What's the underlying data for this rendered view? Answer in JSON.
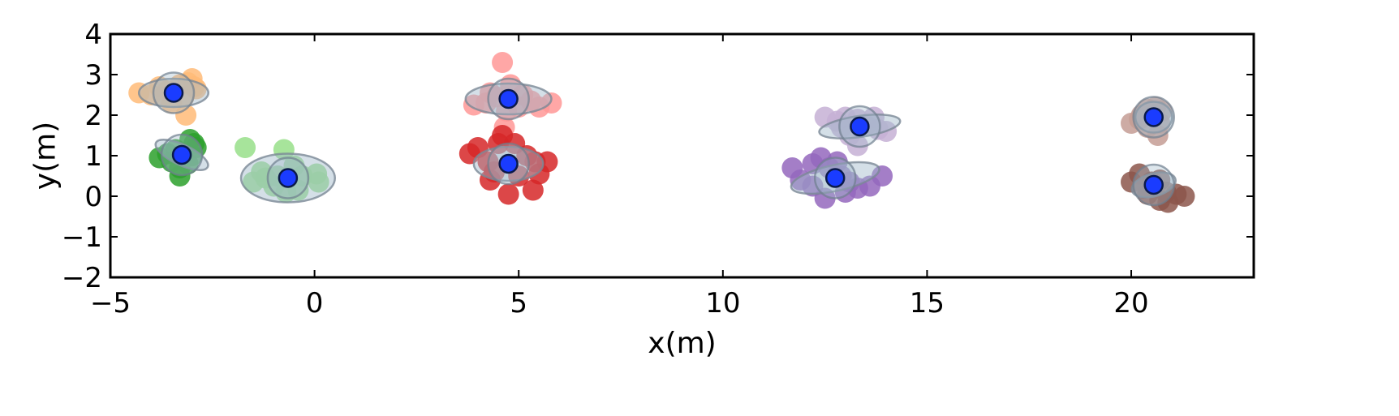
{
  "chart_data": {
    "type": "scatter",
    "title": "",
    "xlabel": "x(m)",
    "ylabel": "y(m)",
    "xlim": [
      -5,
      23
    ],
    "ylim": [
      -2,
      4
    ],
    "xticks": [
      -5,
      0,
      5,
      10,
      15,
      20
    ],
    "yticks": [
      -2,
      -1,
      0,
      1,
      2,
      3,
      4
    ],
    "xtick_labels": [
      "−5",
      "0",
      "5",
      "10",
      "15",
      "20"
    ],
    "ytick_labels": [
      "−2",
      "−1",
      "0",
      "1",
      "2",
      "3",
      "4"
    ],
    "grid": false,
    "center_color": "#1a3cff",
    "ellipse_color": "#9fb7c9",
    "clusters": [
      {
        "color": "#ffbb78",
        "center": [
          -3.45,
          2.55
        ],
        "ellipse": {
          "rx": 0.85,
          "ry": 0.35,
          "angle": 0
        },
        "points": [
          [
            -4.3,
            2.55
          ],
          [
            -4.0,
            2.5
          ],
          [
            -3.8,
            2.7
          ],
          [
            -3.6,
            2.6
          ],
          [
            -3.3,
            2.75
          ],
          [
            -3.1,
            2.8
          ],
          [
            -3.0,
            2.9
          ],
          [
            -2.9,
            2.65
          ],
          [
            -3.2,
            2.45
          ],
          [
            -3.5,
            2.3
          ],
          [
            -3.15,
            2.0
          ],
          [
            -3.7,
            2.45
          ],
          [
            -2.95,
            2.7
          ]
        ]
      },
      {
        "color": "#2ca02c",
        "center": [
          -3.25,
          1.02
        ],
        "ellipse": {
          "rx": 0.7,
          "ry": 0.25,
          "angle": 25
        },
        "points": [
          [
            -3.8,
            0.95
          ],
          [
            -3.5,
            0.85
          ],
          [
            -3.3,
            0.7
          ],
          [
            -3.3,
            0.5
          ],
          [
            -3.0,
            1.0
          ],
          [
            -2.9,
            1.2
          ],
          [
            -2.95,
            1.3
          ],
          [
            -3.4,
            1.15
          ],
          [
            -3.1,
            0.8
          ],
          [
            -3.6,
            1.05
          ],
          [
            -3.05,
            1.4
          ]
        ]
      },
      {
        "color": "#98df8a",
        "center": [
          -0.65,
          0.45
        ],
        "ellipse": {
          "rx": 1.15,
          "ry": 0.6,
          "angle": 0
        },
        "points": [
          [
            -1.7,
            1.2
          ],
          [
            -0.75,
            1.15
          ],
          [
            -1.5,
            0.35
          ],
          [
            -1.2,
            0.45
          ],
          [
            -0.9,
            0.5
          ],
          [
            -0.3,
            0.5
          ],
          [
            0.05,
            0.55
          ],
          [
            0.1,
            0.35
          ],
          [
            -0.4,
            0.15
          ],
          [
            -0.7,
            0.1
          ],
          [
            -1.0,
            0.25
          ],
          [
            -0.5,
            0.75
          ],
          [
            -1.3,
            0.6
          ]
        ]
      },
      {
        "color": "#ff9896",
        "center": [
          4.75,
          2.4
        ],
        "ellipse": {
          "rx": 1.05,
          "ry": 0.38,
          "angle": 0
        },
        "points": [
          [
            4.6,
            3.3
          ],
          [
            3.9,
            2.25
          ],
          [
            4.2,
            2.3
          ],
          [
            4.45,
            2.45
          ],
          [
            4.8,
            2.75
          ],
          [
            5.1,
            2.5
          ],
          [
            5.3,
            2.35
          ],
          [
            5.5,
            2.2
          ],
          [
            5.8,
            2.3
          ],
          [
            4.7,
            2.1
          ],
          [
            4.65,
            1.7
          ],
          [
            5.0,
            2.2
          ],
          [
            4.3,
            2.55
          ]
        ]
      },
      {
        "color": "#d62728",
        "center": [
          4.75,
          0.8
        ],
        "ellipse": {
          "rx": 0.85,
          "ry": 0.42,
          "angle": 0
        },
        "points": [
          [
            3.8,
            1.05
          ],
          [
            4.0,
            1.2
          ],
          [
            4.25,
            0.85
          ],
          [
            4.5,
            1.3
          ],
          [
            4.6,
            1.5
          ],
          [
            4.9,
            1.3
          ],
          [
            5.2,
            1.0
          ],
          [
            5.4,
            0.85
          ],
          [
            5.7,
            0.85
          ],
          [
            5.35,
            0.15
          ],
          [
            4.75,
            0.05
          ],
          [
            4.4,
            0.6
          ],
          [
            5.0,
            0.5
          ],
          [
            4.3,
            0.4
          ],
          [
            5.5,
            0.55
          ]
        ]
      },
      {
        "color": "#c5b0d5",
        "center": [
          13.35,
          1.72
        ],
        "ellipse": {
          "rx": 1.0,
          "ry": 0.26,
          "angle": -8
        },
        "points": [
          [
            12.5,
            1.95
          ],
          [
            12.8,
            1.85
          ],
          [
            13.0,
            1.95
          ],
          [
            13.3,
            1.9
          ],
          [
            13.5,
            1.75
          ],
          [
            13.8,
            1.65
          ],
          [
            14.0,
            1.6
          ],
          [
            13.3,
            1.25
          ],
          [
            13.1,
            1.5
          ],
          [
            13.7,
            1.95
          ],
          [
            12.9,
            1.7
          ]
        ]
      },
      {
        "color": "#9467bd",
        "center": [
          12.75,
          0.45
        ],
        "ellipse": {
          "rx": 1.1,
          "ry": 0.32,
          "angle": -12
        },
        "points": [
          [
            11.7,
            0.7
          ],
          [
            11.9,
            0.4
          ],
          [
            12.2,
            0.8
          ],
          [
            12.4,
            0.95
          ],
          [
            12.6,
            0.7
          ],
          [
            12.9,
            0.5
          ],
          [
            13.1,
            0.35
          ],
          [
            13.3,
            0.2
          ],
          [
            13.6,
            0.25
          ],
          [
            13.9,
            0.5
          ],
          [
            12.5,
            -0.05
          ],
          [
            12.2,
            0.25
          ],
          [
            13.0,
            0.1
          ],
          [
            12.8,
            0.85
          ]
        ]
      },
      {
        "color": "#c49c94",
        "center": [
          20.55,
          1.95
        ],
        "ellipse": {
          "rx": 0.45,
          "ry": 0.38,
          "angle": 0
        },
        "points": [
          [
            20.0,
            1.8
          ],
          [
            20.25,
            2.0
          ],
          [
            20.4,
            2.15
          ],
          [
            20.6,
            2.2
          ],
          [
            20.75,
            2.1
          ],
          [
            20.65,
            1.5
          ],
          [
            20.4,
            1.7
          ],
          [
            20.2,
            1.9
          ],
          [
            20.7,
            1.8
          ]
        ]
      },
      {
        "color": "#8c564b",
        "center": [
          20.55,
          0.28
        ],
        "ellipse": {
          "rx": 0.55,
          "ry": 0.28,
          "angle": -15
        },
        "points": [
          [
            20.0,
            0.35
          ],
          [
            20.2,
            0.55
          ],
          [
            20.3,
            0.2
          ],
          [
            20.5,
            0.35
          ],
          [
            20.7,
            0.4
          ],
          [
            20.85,
            0.1
          ],
          [
            20.7,
            -0.1
          ],
          [
            21.1,
            0.05
          ],
          [
            21.3,
            0.0
          ],
          [
            20.9,
            -0.15
          ],
          [
            20.4,
            0.05
          ]
        ]
      }
    ]
  }
}
